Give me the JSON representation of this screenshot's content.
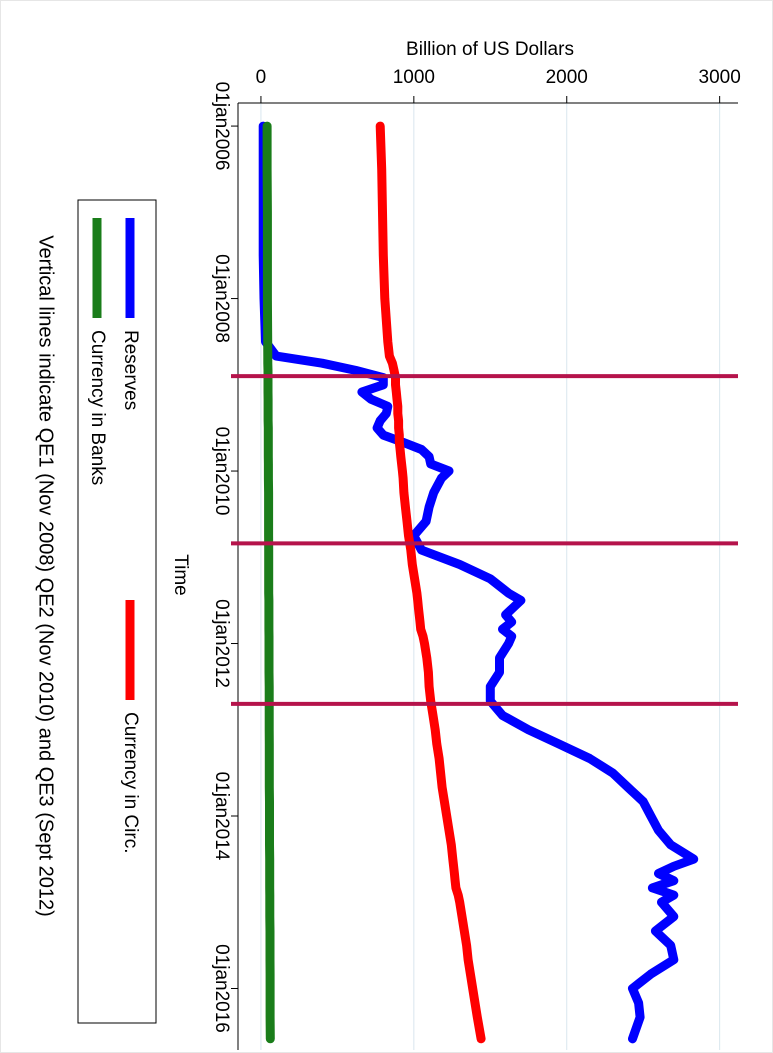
{
  "chart_data": {
    "type": "line",
    "title": "Billion of US Dollars",
    "x_label": "Time",
    "annotation": "Vertical lines indicate QE1 (Nov 2008) QE2 (Nov 2010) and QE3 (Sept 2012)",
    "xlim": [
      "2005-09-25",
      "2016-09-18"
    ],
    "xticks": [
      {
        "value": "2006-01-01",
        "label": "01jan2006"
      },
      {
        "value": "2008-01-01",
        "label": "01jan2008"
      },
      {
        "value": "2010-01-01",
        "label": "01jan2010"
      },
      {
        "value": "2012-01-01",
        "label": "01jan2012"
      },
      {
        "value": "2014-01-01",
        "label": "01jan2014"
      },
      {
        "value": "2016-01-01",
        "label": "01jan2016"
      }
    ],
    "ylim": [
      -150,
      3120
    ],
    "yticks": [
      0,
      1000,
      2000,
      3000
    ],
    "grid": true,
    "vlines": [
      "2008-11-25",
      "2010-11-03",
      "2012-09-13"
    ],
    "vline_color": "#b5134b",
    "x": [
      "2006-01-01",
      "2006-07-01",
      "2007-01-01",
      "2007-07-01",
      "2008-01-01",
      "2008-07-01",
      "2008-09-01",
      "2008-10-01",
      "2008-11-01",
      "2008-12-01",
      "2009-01-01",
      "2009-02-01",
      "2009-03-01",
      "2009-04-01",
      "2009-05-01",
      "2009-06-01",
      "2009-07-01",
      "2009-08-01",
      "2009-09-01",
      "2009-10-01",
      "2009-11-01",
      "2009-12-01",
      "2010-01-01",
      "2010-02-01",
      "2010-04-01",
      "2010-06-01",
      "2010-08-01",
      "2010-10-01",
      "2010-12-01",
      "2011-02-01",
      "2011-04-01",
      "2011-06-01",
      "2011-07-01",
      "2011-08-01",
      "2011-09-01",
      "2011-10-01",
      "2011-11-01",
      "2011-12-01",
      "2012-01-01",
      "2012-03-01",
      "2012-05-01",
      "2012-07-01",
      "2012-09-01",
      "2012-11-01",
      "2013-01-01",
      "2013-03-01",
      "2013-05-01",
      "2013-07-01",
      "2013-09-01",
      "2013-11-01",
      "2014-01-01",
      "2014-03-01",
      "2014-05-01",
      "2014-07-01",
      "2014-08-01",
      "2014-09-01",
      "2014-10-01",
      "2014-11-01",
      "2014-12-01",
      "2015-01-01",
      "2015-03-01",
      "2015-05-01",
      "2015-07-01",
      "2015-09-01",
      "2015-11-01",
      "2016-01-01",
      "2016-03-01",
      "2016-05-01",
      "2016-08-01"
    ],
    "series": [
      {
        "name": "Reserves",
        "color": "#0000ff",
        "values": [
          15,
          15,
          15,
          15,
          20,
          30,
          100,
          400,
          620,
          800,
          800,
          660,
          720,
          830,
          820,
          780,
          760,
          800,
          930,
          1050,
          1100,
          1110,
          1230,
          1180,
          1130,
          1100,
          1080,
          1000,
          1050,
          1300,
          1500,
          1620,
          1700,
          1650,
          1600,
          1640,
          1580,
          1640,
          1620,
          1560,
          1560,
          1500,
          1500,
          1580,
          1750,
          1950,
          2150,
          2300,
          2400,
          2500,
          2550,
          2600,
          2680,
          2830,
          2700,
          2600,
          2700,
          2560,
          2700,
          2620,
          2700,
          2580,
          2680,
          2700,
          2550,
          2430,
          2470,
          2480,
          2430
        ]
      },
      {
        "name": "Currency in Circ.",
        "color": "#ff0000",
        "values": [
          780,
          790,
          795,
          800,
          810,
          830,
          840,
          860,
          870,
          880,
          880,
          885,
          890,
          895,
          895,
          900,
          900,
          905,
          905,
          910,
          915,
          920,
          925,
          930,
          935,
          945,
          955,
          965,
          980,
          990,
          1005,
          1020,
          1025,
          1030,
          1035,
          1040,
          1045,
          1060,
          1070,
          1085,
          1095,
          1100,
          1110,
          1125,
          1140,
          1150,
          1165,
          1175,
          1185,
          1200,
          1215,
          1230,
          1245,
          1255,
          1260,
          1265,
          1270,
          1275,
          1290,
          1300,
          1315,
          1330,
          1345,
          1355,
          1370,
          1385,
          1400,
          1415,
          1440
        ]
      },
      {
        "name": "Currency in Banks",
        "color": "#1a7d1a",
        "values": [
          40,
          40,
          42,
          42,
          42,
          44,
          45,
          45,
          46,
          46,
          46,
          46,
          47,
          47,
          47,
          47,
          48,
          48,
          48,
          48,
          48,
          49,
          49,
          49,
          50,
          50,
          50,
          50,
          51,
          51,
          51,
          51,
          52,
          52,
          52,
          52,
          52,
          53,
          53,
          53,
          53,
          54,
          54,
          54,
          54,
          55,
          55,
          55,
          55,
          56,
          56,
          56,
          56,
          57,
          57,
          57,
          57,
          57,
          58,
          58,
          58,
          59,
          59,
          59,
          60,
          60,
          60,
          60,
          61
        ]
      }
    ]
  }
}
